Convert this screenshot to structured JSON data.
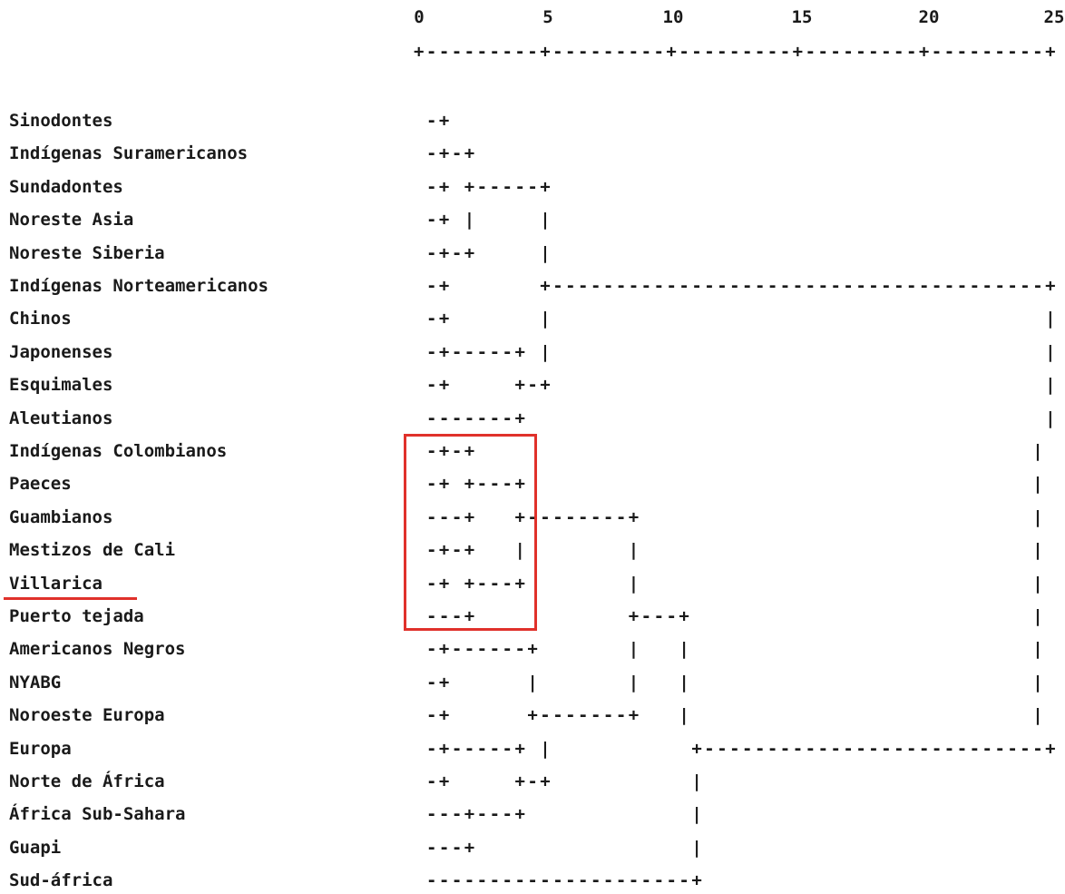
{
  "scale": {
    "ticks": [
      "0",
      "5",
      "10",
      "15",
      "20",
      "25"
    ],
    "axis_line": "+---------+---------+---------+---------+---------+"
  },
  "rows": [
    {
      "label": "Sinodontes",
      "tree": "-+"
    },
    {
      "label": "Indígenas Suramericanos",
      "tree": "-+-+"
    },
    {
      "label": "Sundadontes",
      "tree": "-+ +-----+"
    },
    {
      "label": "Noreste Asia",
      "tree": "-+ |     |"
    },
    {
      "label": "Noreste Siberia",
      "tree": "-+-+     |"
    },
    {
      "label": "Indígenas Norteamericanos",
      "tree": "-+       +---------------------------------------+"
    },
    {
      "label": "Chinos",
      "tree": "-+       |                                       |"
    },
    {
      "label": "Japonenses",
      "tree": "-+-----+ |                                       |"
    },
    {
      "label": "Esquimales",
      "tree": "-+     +-+                                       |"
    },
    {
      "label": "Aleutianos",
      "tree": "-------+                                         |"
    },
    {
      "label": "Indígenas Colombianos",
      "tree": "-+-+                                            |"
    },
    {
      "label": "Paeces",
      "tree": "-+ +---+                                        |"
    },
    {
      "label": "Guambianos",
      "tree": "---+   +--------+                               |"
    },
    {
      "label": "Mestizos de Cali",
      "tree": "-+-+   |        |                               |"
    },
    {
      "label": "Villarica",
      "tree": "-+ +---+        |                               |"
    },
    {
      "label": "Puerto tejada",
      "tree": "---+            +---+                           |"
    },
    {
      "label": "Americanos Negros",
      "tree": "-+------+       |   |                           |"
    },
    {
      "label": "NYABG",
      "tree": "-+      |       |   |                           |"
    },
    {
      "label": "Noroeste Europa",
      "tree": "-+      +-------+   |                           |"
    },
    {
      "label": "Europa",
      "tree": "-+-----+ |           +---------------------------+"
    },
    {
      "label": "Norte de África",
      "tree": "-+     +-+           |"
    },
    {
      "label": "África Sub-Sahara",
      "tree": "---+---+             |"
    },
    {
      "label": "Guapi",
      "tree": "---+                 |"
    },
    {
      "label": "Sud-áfrica",
      "tree": "---------------------+"
    }
  ],
  "annotation": {
    "box_color": "#e0312b",
    "underline_color": "#e0312b"
  }
}
